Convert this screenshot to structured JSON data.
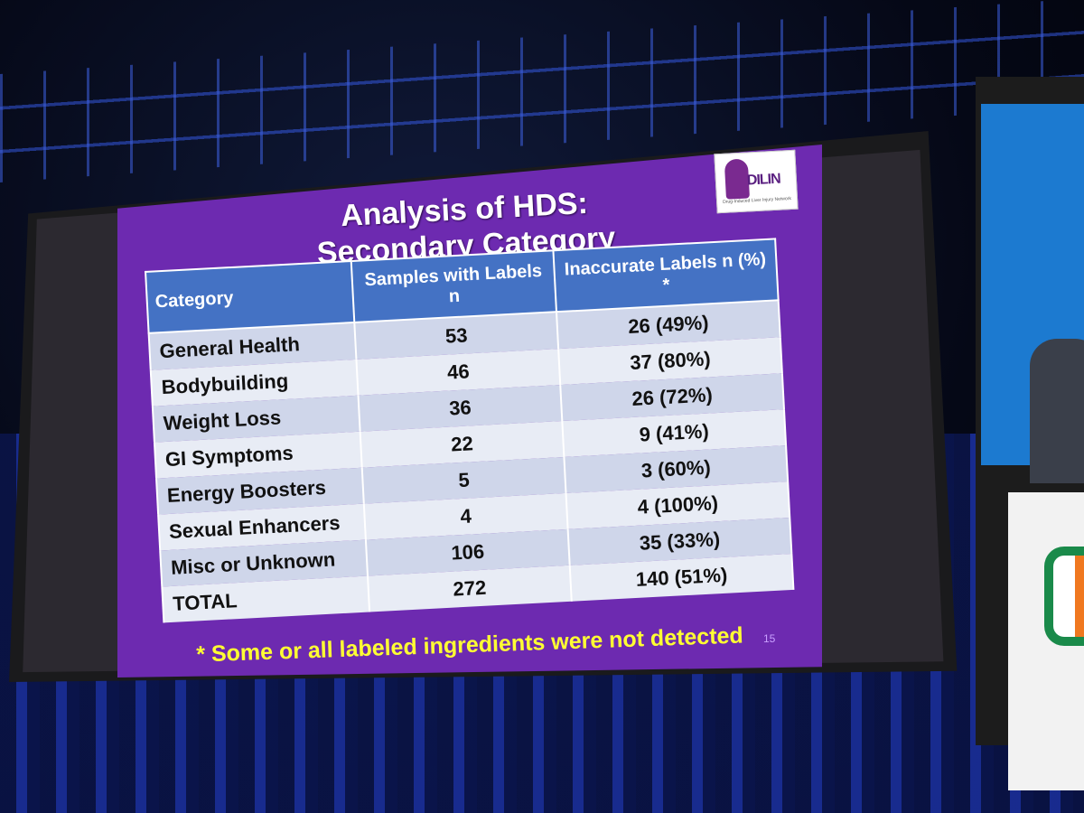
{
  "slide": {
    "title_line1": "Analysis of HDS:",
    "title_line2": "Secondary Category",
    "logo_text": "DILIN",
    "logo_subtext": "Drug-Induced Liver Injury Network",
    "footnote": "* Some or all labeled ingredients were not detected",
    "page_number": "15"
  },
  "table": {
    "headers": [
      "Category",
      "Samples with Labels n",
      "Inaccurate Labels n (%) *"
    ],
    "rows": [
      {
        "category": "General Health",
        "samples": "53",
        "inaccurate": "26  (49%)"
      },
      {
        "category": "Bodybuilding",
        "samples": "46",
        "inaccurate": "37  (80%)"
      },
      {
        "category": "Weight Loss",
        "samples": "36",
        "inaccurate": "26  (72%)"
      },
      {
        "category": "GI Symptoms",
        "samples": "22",
        "inaccurate": "9  (41%)"
      },
      {
        "category": "Energy Boosters",
        "samples": "5",
        "inaccurate": "3  (60%)"
      },
      {
        "category": "Sexual Enhancers",
        "samples": "4",
        "inaccurate": "4  (100%)"
      },
      {
        "category": "Misc or Unknown",
        "samples": "106",
        "inaccurate": "35  (33%)"
      }
    ],
    "total": {
      "category": "TOTAL",
      "samples": "272",
      "inaccurate": "140 (51%)"
    }
  },
  "colors": {
    "slide_background": "#6d2ab0",
    "header_fill": "#4472c4",
    "footnote_text": "#ffff33"
  }
}
